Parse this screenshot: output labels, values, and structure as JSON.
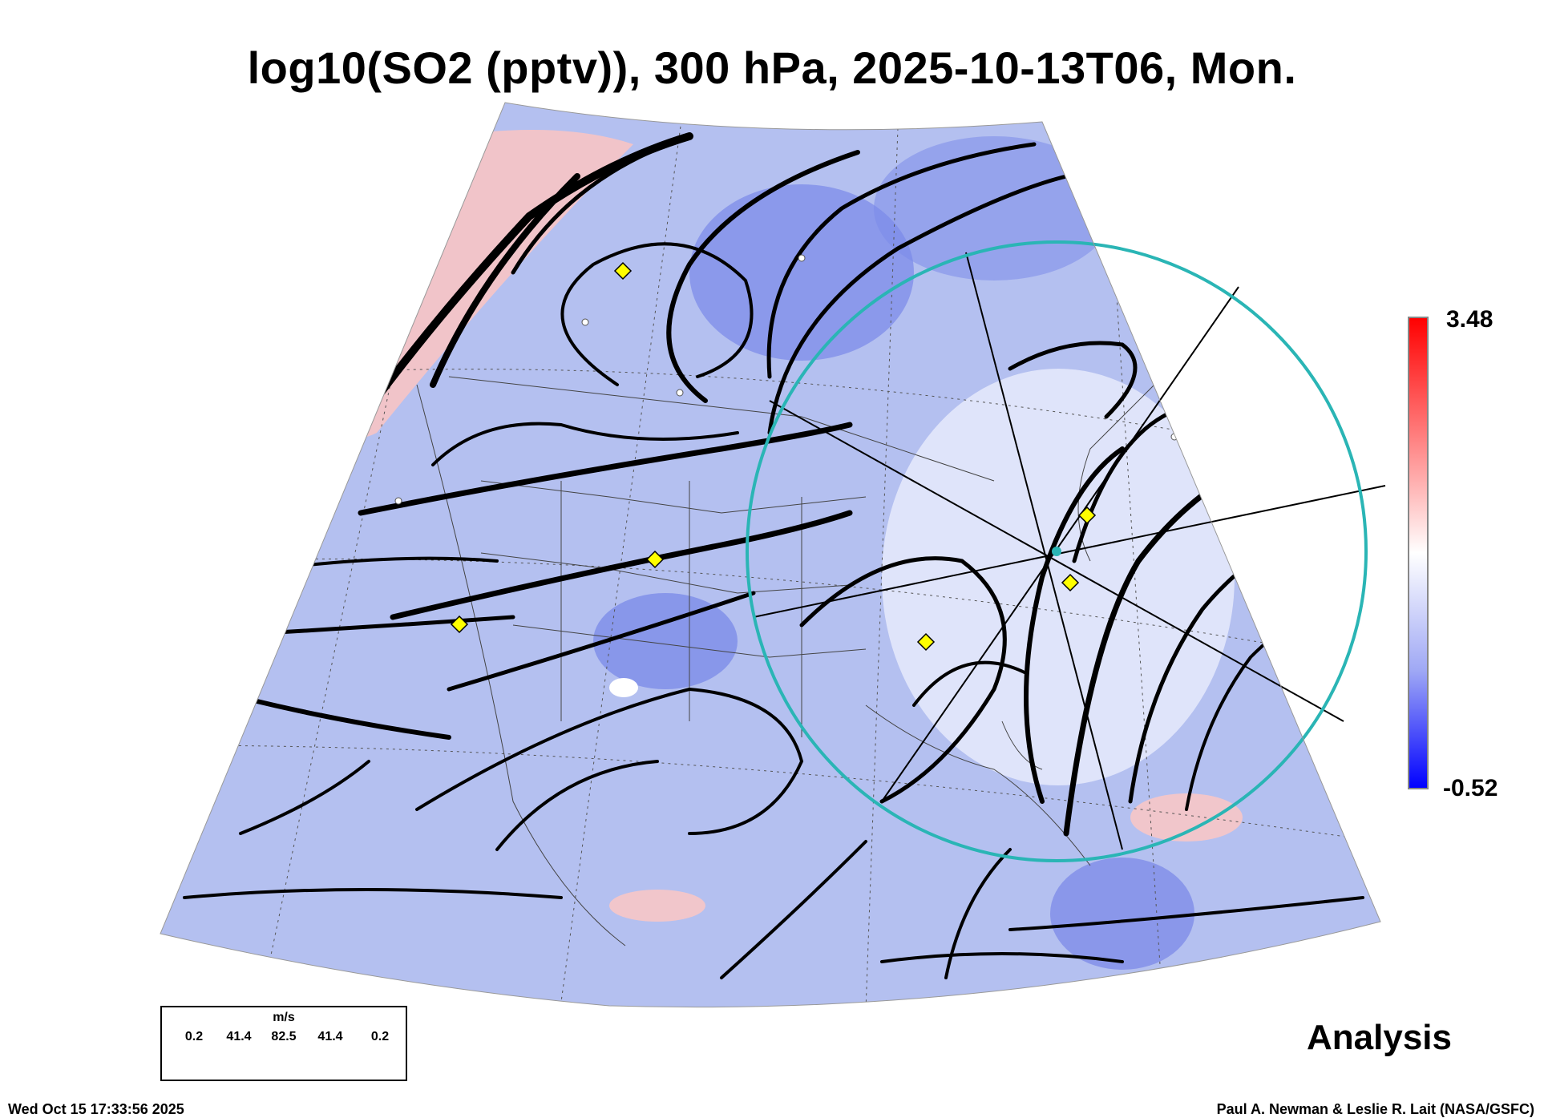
{
  "title": "log10(SO2 (pptv)), 300 hPa, 2025-10-13T06, Mon.",
  "colorbar": {
    "max_label": "3.48",
    "min_label": "-0.52",
    "low_color": "#0000ff",
    "mid_color": "#ffffff",
    "high_color": "#ff0000"
  },
  "wind_legend": {
    "units": "m/s",
    "values": [
      "0.2",
      "41.4",
      "82.5",
      "41.4",
      "0.2"
    ]
  },
  "analysis_label": "Analysis",
  "timestamp": "Wed Oct 15 17:33:56 2025",
  "credit": "Paul A. Newman & Leslie R. Lait (NASA/GSFC)",
  "colors": {
    "field": "#aab8ee",
    "circle": "#2ab5b5",
    "marker": "#ffff00",
    "streamline": "#000000"
  }
}
